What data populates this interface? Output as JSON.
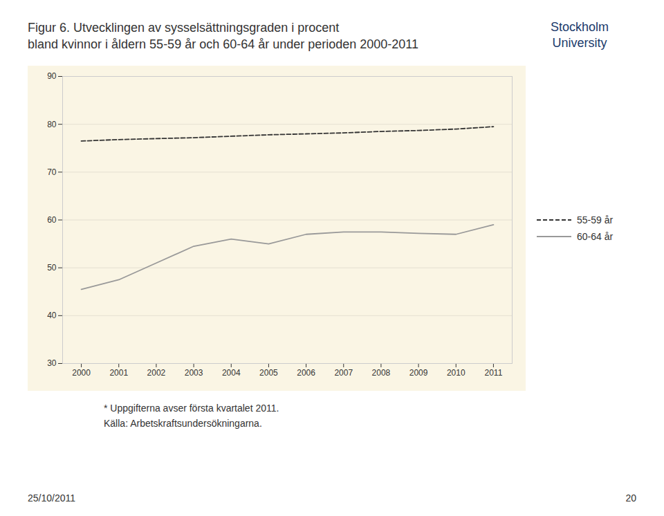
{
  "chart_data": {
    "type": "line",
    "title": "Figur 6. Utvecklingen av sysselsättningsgraden i procent",
    "subtitle": "bland kvinnor i åldern 55-59 år och 60-64 år under perioden 2000-2011",
    "x": [
      2000,
      2001,
      2002,
      2003,
      2004,
      2005,
      2006,
      2007,
      2008,
      2009,
      2010,
      2011
    ],
    "series": [
      {
        "name": "55-59 år",
        "color": "#333333",
        "line_style": "dashed",
        "values": [
          76.5,
          76.8,
          77.0,
          77.2,
          77.5,
          77.8,
          78.0,
          78.2,
          78.5,
          78.7,
          79.0,
          79.5
        ]
      },
      {
        "name": "60-64 år",
        "color": "#999999",
        "line_style": "solid",
        "values": [
          45.5,
          47.5,
          51.0,
          54.5,
          56.0,
          55.0,
          57.0,
          57.5,
          57.5,
          57.2,
          57.0,
          59.0
        ]
      }
    ],
    "xlim": [
      1999.5,
      2011.5
    ],
    "xticks": [
      2000,
      2001,
      2002,
      2003,
      2004,
      2005,
      2006,
      2007,
      2008,
      2009,
      2010,
      2011
    ],
    "ylim": [
      30,
      90
    ],
    "yticks": [
      30,
      40,
      50,
      60,
      70,
      80,
      90
    ],
    "grid": true,
    "legend": "right",
    "annotations": [
      "* Uppgifterna avser första kvartalet 2011.",
      "Källa: Arbetskraftsundersökningarna.",
      "25/10/2011",
      "20",
      "Stockholm",
      "University"
    ]
  }
}
